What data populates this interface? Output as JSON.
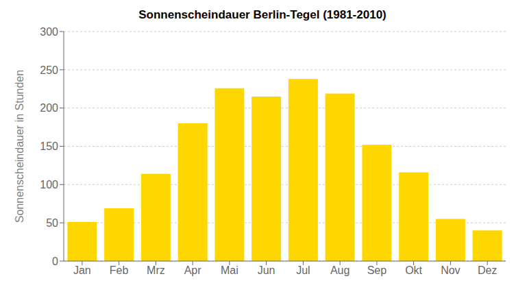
{
  "chart_data": {
    "type": "bar",
    "title": "Sonnenscheindauer Berlin-Tegel (1981-2010)",
    "categories": [
      "Jan",
      "Feb",
      "Mrz",
      "Apr",
      "Mai",
      "Jun",
      "Jul",
      "Aug",
      "Sep",
      "Okt",
      "Nov",
      "Dez"
    ],
    "values": [
      51,
      69,
      114,
      180,
      226,
      215,
      238,
      219,
      152,
      116,
      55,
      40
    ],
    "color": "#FFD700",
    "ylabel": "Sonnenscheindauer in Stunden",
    "ylim": [
      0,
      300
    ],
    "yticks": [
      0,
      50,
      100,
      150,
      200,
      250,
      300
    ],
    "grid": true
  }
}
